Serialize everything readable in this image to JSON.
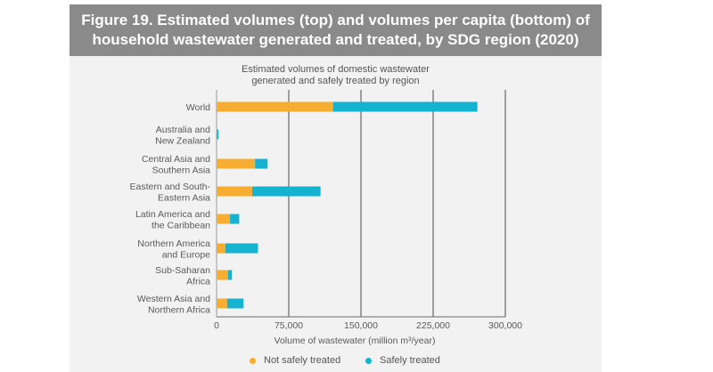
{
  "figure": {
    "title_line1": "Figure 19. Estimated volumes (top) and volumes per capita (bottom) of",
    "title_line2": "household wastewater generated and treated, by SDG region (2020)"
  },
  "colors": {
    "not_safe": "#f7ae30",
    "safe": "#14b3d1",
    "banner": "#8a8a8a",
    "panel": "#f2f2f2"
  },
  "chart_data": {
    "type": "bar",
    "orientation": "horizontal",
    "stacked": true,
    "title_lines": [
      "Estimated volumes of domestic wastewater",
      "generated and safely treated by region"
    ],
    "categories": [
      [
        "World"
      ],
      [
        "Australia and",
        "New Zealand"
      ],
      [
        "Central Asia and",
        "Southern Asia"
      ],
      [
        "Eastern and South-",
        "Eastern Asia"
      ],
      [
        "Latin America and",
        "the Caribbean"
      ],
      [
        "Northern America",
        "and Europe"
      ],
      [
        "Sub-Saharan",
        "Africa"
      ],
      [
        "Western Asia and",
        "Northern Africa"
      ]
    ],
    "series": [
      {
        "name": "Not safely treated",
        "color": "#f7ae30",
        "values": [
          121000,
          400,
          40000,
          37000,
          14000,
          9000,
          12000,
          11000
        ]
      },
      {
        "name": "Safely treated",
        "color": "#14b3d1",
        "values": [
          150000,
          1600,
          13000,
          71000,
          9500,
          34000,
          4000,
          17000
        ]
      }
    ],
    "xlim": [
      0,
      300000
    ],
    "xticks": [
      0,
      75000,
      150000,
      225000,
      300000
    ],
    "xtick_labels": [
      "0",
      "75,000",
      "150,000",
      "225,000",
      "300,000"
    ],
    "xlabel": "Volume of wastewater (million m³/year)",
    "grid": "vertical",
    "legend_position": "bottom"
  }
}
